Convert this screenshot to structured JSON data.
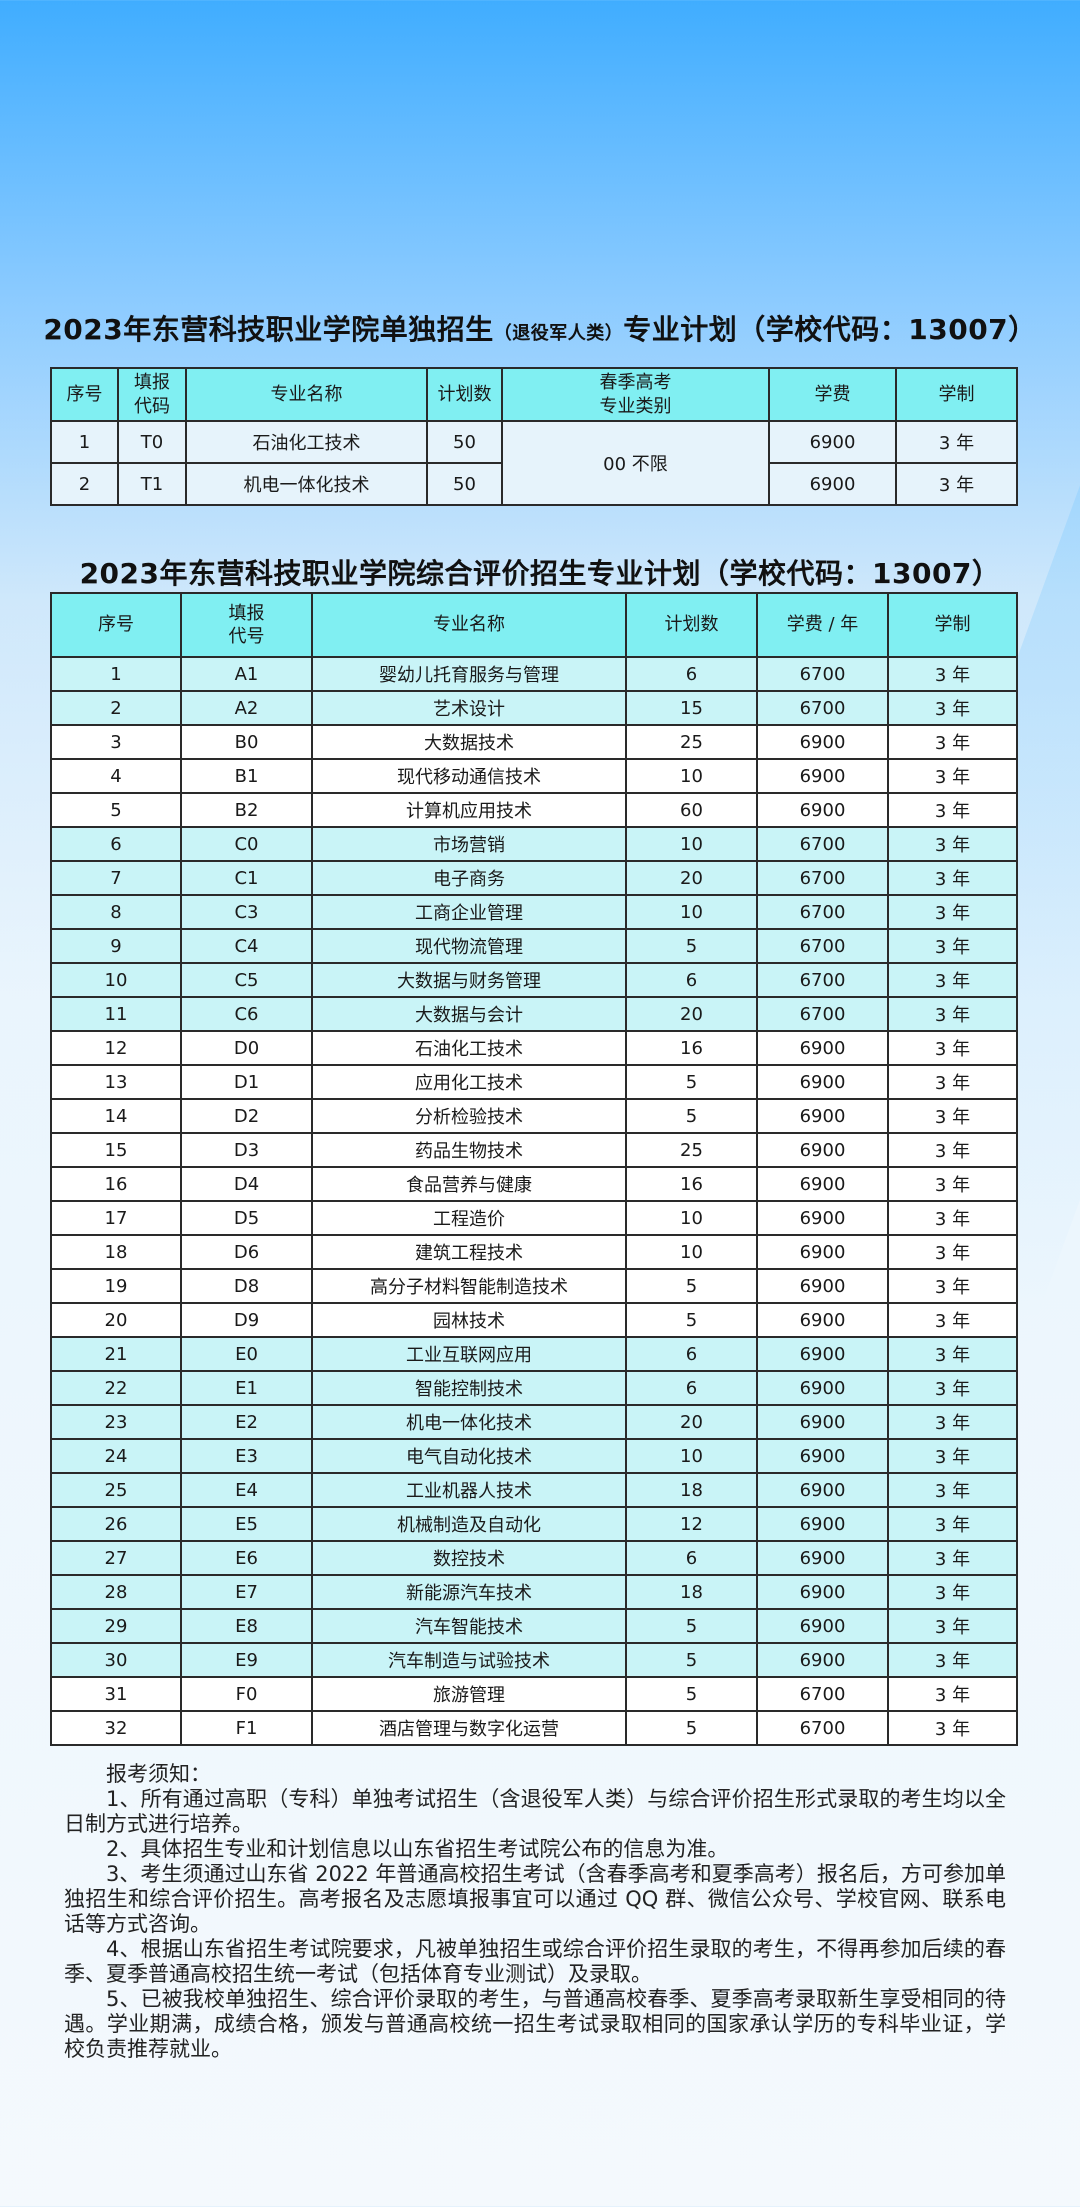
{
  "title1": {
    "main": "2023年东营科技职业学院单独招生",
    "sub": "（退役军人类）",
    "tail": "专业计划（学校代码：13007）"
  },
  "table1": {
    "headers": [
      "序号",
      "填报\n代码",
      "专业名称",
      "计划数",
      "春季高考\n专业类别",
      "学费",
      "学制"
    ],
    "category": "00 不限",
    "rows": [
      [
        "1",
        "T0",
        "石油化工技术",
        "50",
        "6900",
        "3 年"
      ],
      [
        "2",
        "T1",
        "机电一体化技术",
        "50",
        "6900",
        "3 年"
      ]
    ]
  },
  "title2": "2023年东营科技职业学院综合评价招生专业计划（学校代码：13007）",
  "table2": {
    "headers": [
      "序号",
      "填报\n代号",
      "专业名称",
      "计划数",
      "学费 / 年",
      "学制"
    ],
    "rows": [
      [
        "1",
        "A1",
        "婴幼儿托育服务与管理",
        "6",
        "6700",
        "3 年"
      ],
      [
        "2",
        "A2",
        "艺术设计",
        "15",
        "6700",
        "3 年"
      ],
      [
        "3",
        "B0",
        "大数据技术",
        "25",
        "6900",
        "3 年"
      ],
      [
        "4",
        "B1",
        "现代移动通信技术",
        "10",
        "6900",
        "3 年"
      ],
      [
        "5",
        "B2",
        "计算机应用技术",
        "60",
        "6900",
        "3 年"
      ],
      [
        "6",
        "C0",
        "市场营销",
        "10",
        "6700",
        "3 年"
      ],
      [
        "7",
        "C1",
        "电子商务",
        "20",
        "6700",
        "3 年"
      ],
      [
        "8",
        "C3",
        "工商企业管理",
        "10",
        "6700",
        "3 年"
      ],
      [
        "9",
        "C4",
        "现代物流管理",
        "5",
        "6700",
        "3 年"
      ],
      [
        "10",
        "C5",
        "大数据与财务管理",
        "6",
        "6700",
        "3 年"
      ],
      [
        "11",
        "C6",
        "大数据与会计",
        "20",
        "6700",
        "3 年"
      ],
      [
        "12",
        "D0",
        "石油化工技术",
        "16",
        "6900",
        "3 年"
      ],
      [
        "13",
        "D1",
        "应用化工技术",
        "5",
        "6900",
        "3 年"
      ],
      [
        "14",
        "D2",
        "分析检验技术",
        "5",
        "6900",
        "3 年"
      ],
      [
        "15",
        "D3",
        "药品生物技术",
        "25",
        "6900",
        "3 年"
      ],
      [
        "16",
        "D4",
        "食品营养与健康",
        "16",
        "6900",
        "3 年"
      ],
      [
        "17",
        "D5",
        "工程造价",
        "10",
        "6900",
        "3 年"
      ],
      [
        "18",
        "D6",
        "建筑工程技术",
        "10",
        "6900",
        "3 年"
      ],
      [
        "19",
        "D8",
        "高分子材料智能制造技术",
        "5",
        "6900",
        "3 年"
      ],
      [
        "20",
        "D9",
        "园林技术",
        "5",
        "6900",
        "3 年"
      ],
      [
        "21",
        "E0",
        "工业互联网应用",
        "6",
        "6900",
        "3 年"
      ],
      [
        "22",
        "E1",
        "智能控制技术",
        "6",
        "6900",
        "3 年"
      ],
      [
        "23",
        "E2",
        "机电一体化技术",
        "20",
        "6900",
        "3 年"
      ],
      [
        "24",
        "E3",
        "电气自动化技术",
        "10",
        "6900",
        "3 年"
      ],
      [
        "25",
        "E4",
        "工业机器人技术",
        "18",
        "6900",
        "3 年"
      ],
      [
        "26",
        "E5",
        "机械制造及自动化",
        "12",
        "6900",
        "3 年"
      ],
      [
        "27",
        "E6",
        "数控技术",
        "6",
        "6900",
        "3 年"
      ],
      [
        "28",
        "E7",
        "新能源汽车技术",
        "18",
        "6900",
        "3 年"
      ],
      [
        "29",
        "E8",
        "汽车智能技术",
        "5",
        "6900",
        "3 年"
      ],
      [
        "30",
        "E9",
        "汽车制造与试验技术",
        "5",
        "6900",
        "3 年"
      ],
      [
        "31",
        "F0",
        "旅游管理",
        "5",
        "6700",
        "3 年"
      ],
      [
        "32",
        "F1",
        "酒店管理与数字化运营",
        "5",
        "6700",
        "3 年"
      ]
    ]
  },
  "notes": {
    "heading": "报考须知：",
    "items": [
      "1、所有通过高职（专科）单独考试招生（含退役军人类）与综合评价招生形式录取的考生均以全日制方式进行培养。",
      "2、具体招生专业和计划信息以山东省招生考试院公布的信息为准。",
      "3、考生须通过山东省 2022 年普通高校招生考试（含春季高考和夏季高考）报名后，方可参加单独招生和综合评价招生。高考报名及志愿填报事宜可以通过 QQ 群、微信公众号、学校官网、联系电话等方式咨询。",
      "4、根据山东省招生考试院要求，凡被单独招生或综合评价招生录取的考生，不得再参加后续的春季、夏季普通高校招生统一考试（包括体育专业测试）及录取。",
      "5、已被我校单独招生、综合评价录取的考生，与普通高校春季、夏季高考录取新生享受相同的待遇。学业期满，成绩合格，颁发与普通高校统一招生考试录取相同的国家承认学历的专科毕业证，学校负责推荐就业。"
    ]
  },
  "colors": {
    "header": "#80eff2",
    "cyan_row": "#c9f4f7",
    "white_row": "#ffffff"
  }
}
